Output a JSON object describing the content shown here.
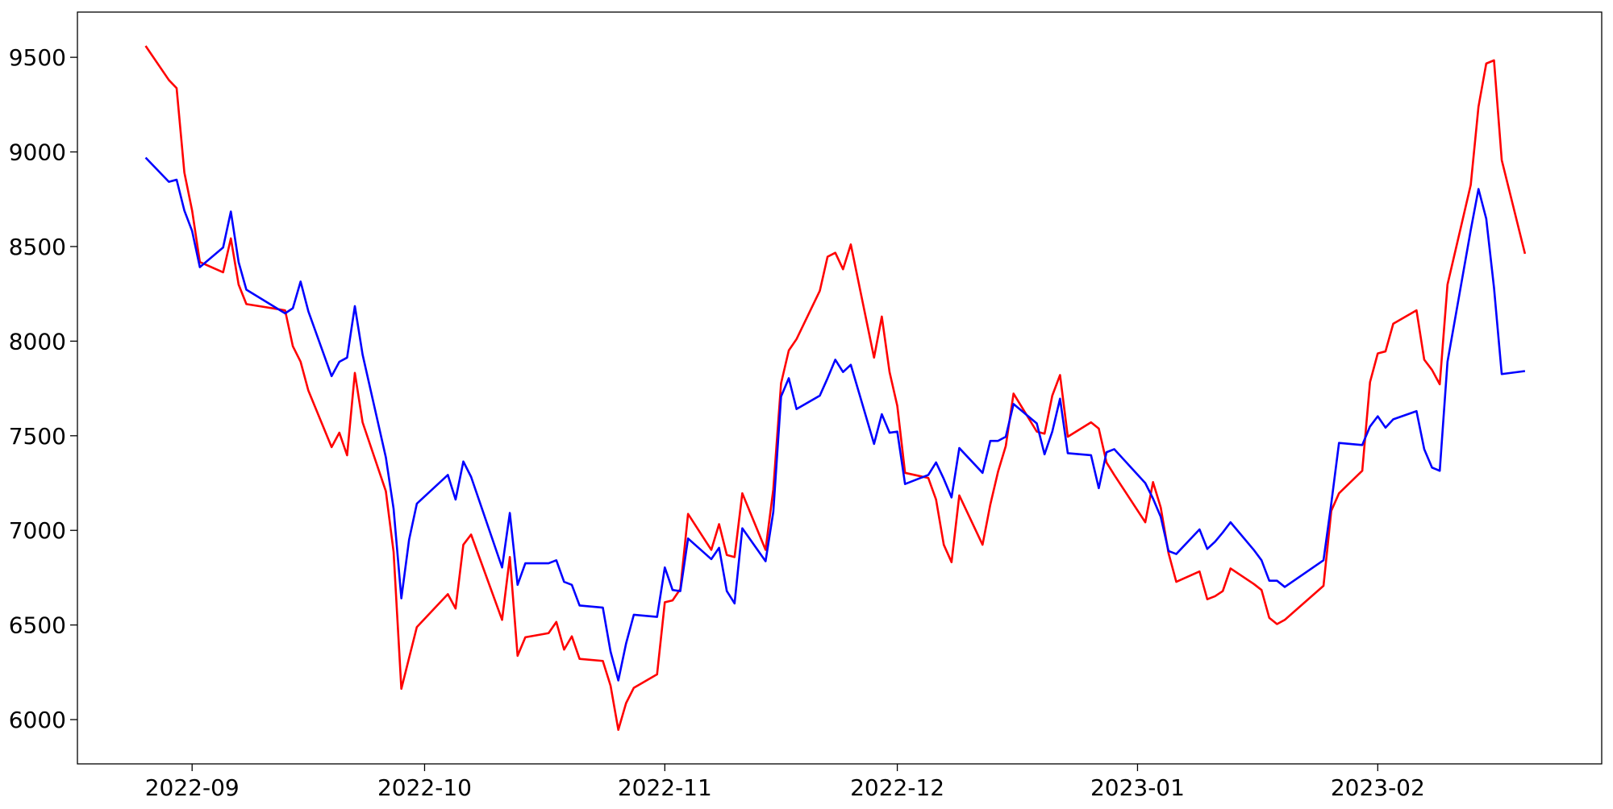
{
  "chart_data": {
    "type": "line",
    "x": [
      19230,
      19233,
      19234,
      19235,
      19236,
      19237,
      19240,
      19241,
      19242,
      19243,
      19248,
      19249,
      19250,
      19251,
      19254,
      19255,
      19256,
      19257,
      19258,
      19261,
      19262,
      19263,
      19264,
      19265,
      19269,
      19270,
      19271,
      19272,
      19276,
      19277,
      19278,
      19279,
      19282,
      19283,
      19284,
      19285,
      19286,
      19289,
      19290,
      19291,
      19292,
      19293,
      19296,
      19297,
      19298,
      19299,
      19300,
      19303,
      19304,
      19305,
      19306,
      19307,
      19310,
      19311,
      19312,
      19313,
      19314,
      19317,
      19318,
      19319,
      19320,
      19321,
      19324,
      19325,
      19326,
      19327,
      19328,
      19331,
      19332,
      19333,
      19334,
      19335,
      19338,
      19339,
      19340,
      19341,
      19342,
      19345,
      19346,
      19347,
      19348,
      19349,
      19352,
      19353,
      19354,
      19355,
      19359,
      19360,
      19361,
      19362,
      19363,
      19366,
      19367,
      19368,
      19369,
      19370,
      19373,
      19374,
      19375,
      19376,
      19377,
      19382,
      19383,
      19384,
      19387,
      19388,
      19389,
      19390,
      19391,
      19394,
      19395,
      19396,
      19397,
      19398,
      19401,
      19402,
      19403,
      19404,
      19405,
      19408
    ],
    "series": [
      {
        "color": "#ff0000",
        "values": [
          9560,
          9380,
          9337,
          8891,
          8690,
          8418,
          8364,
          8543,
          8299,
          8196,
          8163,
          7973,
          7891,
          7739,
          7440,
          7516,
          7397,
          7832,
          7571,
          7207,
          6886,
          6163,
          6326,
          6489,
          6663,
          6587,
          6924,
          6978,
          6527,
          6859,
          6337,
          6435,
          6457,
          6516,
          6370,
          6440,
          6321,
          6310,
          6179,
          5946,
          6087,
          6168,
          6239,
          6620,
          6630,
          6690,
          7087,
          6897,
          7033,
          6870,
          6859,
          7196,
          6897,
          7217,
          7777,
          7951,
          8011,
          8266,
          8446,
          8467,
          8380,
          8511,
          7913,
          8130,
          7837,
          7658,
          7304,
          7277,
          7163,
          6924,
          6832,
          7185,
          6924,
          7136,
          7310,
          7446,
          7723,
          7522,
          7511,
          7712,
          7821,
          7495,
          7571,
          7538,
          7359,
          7293,
          7043,
          7255,
          7120,
          6880,
          6728,
          6783,
          6636,
          6652,
          6679,
          6799,
          6717,
          6685,
          6538,
          6505,
          6527,
          6707,
          7103,
          7196,
          7315,
          7783,
          7935,
          7946,
          8092,
          8163,
          7902,
          7848,
          7772,
          8299,
          8826,
          9239,
          9467,
          9484,
          8957,
          8462
        ]
      },
      {
        "color": "#0000ff",
        "values": [
          8970,
          8842,
          8853,
          8690,
          8582,
          8391,
          8495,
          8685,
          8418,
          8272,
          8147,
          8174,
          8315,
          8158,
          7815,
          7891,
          7913,
          8185,
          7929,
          7386,
          7114,
          6641,
          6951,
          7141,
          7293,
          7163,
          7364,
          7283,
          6804,
          7092,
          6712,
          6826,
          6826,
          6842,
          6728,
          6712,
          6603,
          6592,
          6359,
          6207,
          6402,
          6554,
          6543,
          6804,
          6685,
          6679,
          6957,
          6848,
          6908,
          6679,
          6614,
          7011,
          6837,
          7098,
          7707,
          7804,
          7641,
          7712,
          7804,
          7902,
          7837,
          7875,
          7457,
          7614,
          7516,
          7522,
          7245,
          7293,
          7359,
          7272,
          7174,
          7435,
          7304,
          7473,
          7473,
          7495,
          7668,
          7565,
          7402,
          7522,
          7696,
          7408,
          7397,
          7223,
          7413,
          7429,
          7250,
          7168,
          7071,
          6891,
          6875,
          7005,
          6902,
          6940,
          6989,
          7043,
          6897,
          6842,
          6734,
          6734,
          6701,
          6842,
          7141,
          7462,
          7451,
          7549,
          7603,
          7543,
          7587,
          7630,
          7429,
          7332,
          7315,
          7891,
          8587,
          8804,
          8647,
          8283,
          7826,
          7842
        ]
      }
    ],
    "xlim": [
      19221.2,
      19417.9
    ],
    "xticks": [
      {
        "value": 19236,
        "label": "2022-09"
      },
      {
        "value": 19266,
        "label": "2022-10"
      },
      {
        "value": 19297,
        "label": "2022-11"
      },
      {
        "value": 19327,
        "label": "2022-12"
      },
      {
        "value": 19358,
        "label": "2023-01"
      },
      {
        "value": 19389,
        "label": "2023-02"
      }
    ],
    "ylim": [
      5766,
      9739
    ],
    "yticks": [
      6000,
      6500,
      7000,
      7500,
      8000,
      8500,
      9000,
      9500
    ],
    "grid": false
  }
}
